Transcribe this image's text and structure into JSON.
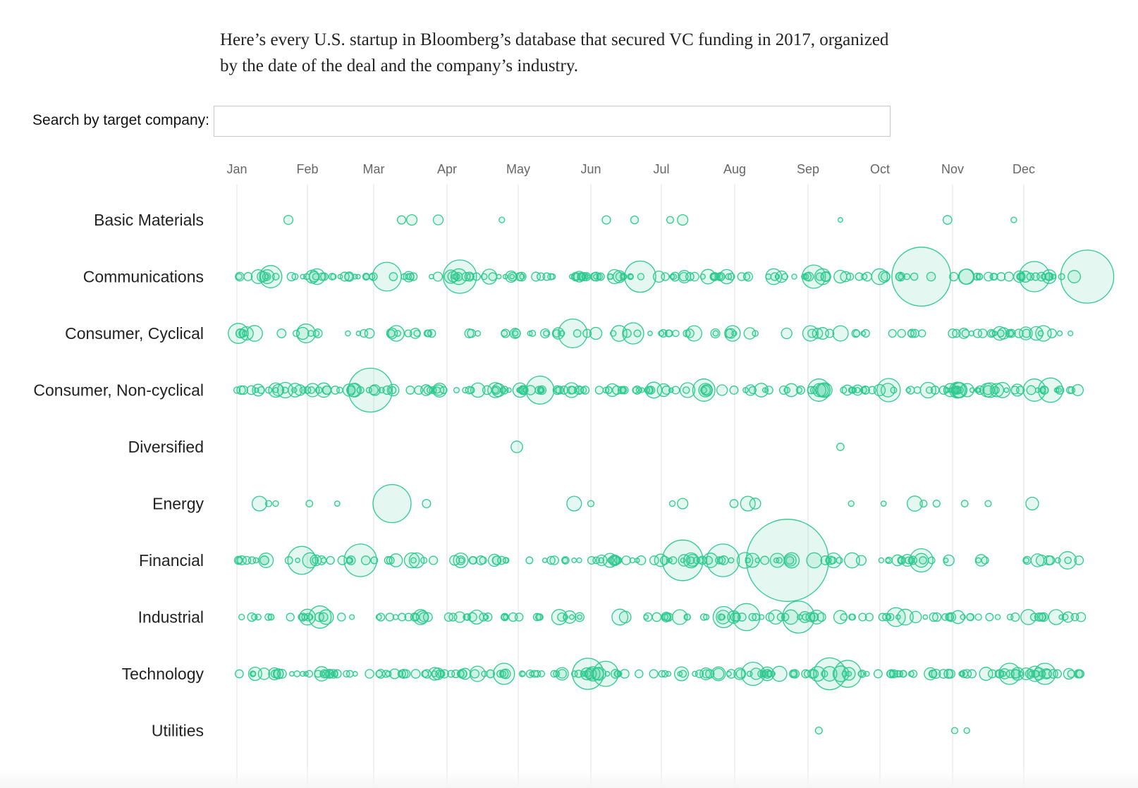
{
  "intro": {
    "text": "Here’s every U.S. startup in Bloomberg’s database that secured VC funding in 2017, organized by the date of the deal and the company’s industry."
  },
  "search": {
    "label": "Search by target company:",
    "placeholder": "",
    "value": ""
  },
  "colors": {
    "bubble_stroke": "#2fca8f",
    "bubble_fill": "rgba(47, 202, 143, 0.13)",
    "gridline": "#ececec",
    "month_label": "#666666",
    "row_label": "#222222"
  },
  "chart_data": {
    "type": "scatter",
    "title": "",
    "xlabel": "",
    "ylabel": "",
    "x_axis": "month",
    "categories": [
      "Jan",
      "Feb",
      "Mar",
      "Apr",
      "May",
      "Jun",
      "Jul",
      "Aug",
      "Sep",
      "Oct",
      "Nov",
      "Dec"
    ],
    "rows": [
      "Basic Materials",
      "Communications",
      "Consumer, Cyclical",
      "Consumer, Non-cyclical",
      "Diversified",
      "Energy",
      "Financial",
      "Industrial",
      "Technology",
      "Utilities"
    ],
    "size_encoding": "bubble area proportional to deal size",
    "grid": true,
    "series": [
      {
        "row": "Basic Materials",
        "points": [
          {
            "month": 1.73,
            "size": 1.5
          },
          {
            "month": 3.38,
            "size": 1.3
          },
          {
            "month": 3.52,
            "size": 2.0
          },
          {
            "month": 3.88,
            "size": 1.8
          },
          {
            "month": 4.77,
            "size": 0.6
          },
          {
            "month": 6.22,
            "size": 1.3
          },
          {
            "month": 6.62,
            "size": 1.1
          },
          {
            "month": 7.12,
            "size": 0.9
          },
          {
            "month": 7.29,
            "size": 2.0
          },
          {
            "month": 9.45,
            "size": 0.4
          },
          {
            "month": 10.93,
            "size": 1.4
          },
          {
            "month": 11.86,
            "size": 0.6
          }
        ]
      },
      {
        "row": "Communications",
        "dense": 0.9,
        "big": [
          {
            "month": 3.18,
            "size": 16
          },
          {
            "month": 4.18,
            "size": 22
          },
          {
            "month": 6.7,
            "size": 19
          },
          {
            "month": 1.48,
            "size": 9
          },
          {
            "month": 9.08,
            "size": 10
          },
          {
            "month": 10.57,
            "size": 75
          },
          {
            "month": 12.15,
            "size": 18
          },
          {
            "month": 12.9,
            "size": 60
          }
        ]
      },
      {
        "row": "Consumer, Cyclical",
        "dense": 0.55,
        "big": [
          {
            "month": 1.02,
            "size": 7
          },
          {
            "month": 1.25,
            "size": 4
          },
          {
            "month": 1.98,
            "size": 6
          },
          {
            "month": 5.75,
            "size": 16
          },
          {
            "month": 6.6,
            "size": 8
          },
          {
            "month": 6.4,
            "size": 4
          }
        ]
      },
      {
        "row": "Consumer, Non-cyclical",
        "dense": 1.0,
        "big": [
          {
            "month": 2.95,
            "size": 40
          },
          {
            "month": 5.3,
            "size": 15
          },
          {
            "month": 7.58,
            "size": 9
          },
          {
            "month": 9.15,
            "size": 9
          },
          {
            "month": 10.12,
            "size": 10
          },
          {
            "month": 12.15,
            "size": 9
          },
          {
            "month": 12.38,
            "size": 11
          }
        ]
      },
      {
        "row": "Diversified",
        "points": [
          {
            "month": 4.98,
            "size": 2.5
          },
          {
            "month": 9.45,
            "size": 1.0
          }
        ]
      },
      {
        "row": "Energy",
        "points": [
          {
            "month": 1.32,
            "size": 4.0
          },
          {
            "month": 1.45,
            "size": 0.7
          },
          {
            "month": 1.55,
            "size": 0.6
          },
          {
            "month": 2.03,
            "size": 0.8
          },
          {
            "month": 2.45,
            "size": 0.5
          },
          {
            "month": 3.25,
            "size": 27
          },
          {
            "month": 3.72,
            "size": 1.3
          },
          {
            "month": 5.77,
            "size": 4.0
          },
          {
            "month": 6.0,
            "size": 0.7
          },
          {
            "month": 7.15,
            "size": 0.6
          },
          {
            "month": 7.29,
            "size": 2.0
          },
          {
            "month": 7.99,
            "size": 1.2
          },
          {
            "month": 8.18,
            "size": 4.0
          },
          {
            "month": 8.28,
            "size": 2.2
          },
          {
            "month": 9.6,
            "size": 0.6
          },
          {
            "month": 10.05,
            "size": 0.5
          },
          {
            "month": 10.48,
            "size": 4.2
          },
          {
            "month": 10.6,
            "size": 0.9
          },
          {
            "month": 10.78,
            "size": 0.9
          },
          {
            "month": 11.17,
            "size": 0.8
          },
          {
            "month": 11.5,
            "size": 0.7
          },
          {
            "month": 12.12,
            "size": 3.0
          }
        ]
      },
      {
        "row": "Financial",
        "dense": 0.7,
        "big": [
          {
            "month": 1.92,
            "size": 15
          },
          {
            "month": 2.8,
            "size": 21
          },
          {
            "month": 7.29,
            "size": 34
          },
          {
            "month": 7.84,
            "size": 21
          },
          {
            "month": 8.72,
            "size": 150
          },
          {
            "month": 10.57,
            "size": 10
          },
          {
            "month": 12.62,
            "size": 5
          }
        ]
      },
      {
        "row": "Industrial",
        "dense": 0.7,
        "big": [
          {
            "month": 2.19,
            "size": 9
          },
          {
            "month": 8.87,
            "size": 20
          },
          {
            "month": 8.16,
            "size": 14
          },
          {
            "month": 7.85,
            "size": 8
          },
          {
            "month": 10.22,
            "size": 6
          },
          {
            "month": 2.0,
            "size": 4
          }
        ]
      },
      {
        "row": "Technology",
        "dense": 1.0,
        "big": [
          {
            "month": 5.96,
            "size": 19
          },
          {
            "month": 6.21,
            "size": 12
          },
          {
            "month": 9.3,
            "size": 20
          },
          {
            "month": 9.55,
            "size": 14
          },
          {
            "month": 8.25,
            "size": 10
          },
          {
            "month": 11.8,
            "size": 8
          },
          {
            "month": 12.3,
            "size": 8
          },
          {
            "month": 4.8,
            "size": 8
          }
        ]
      },
      {
        "row": "Utilities",
        "points": [
          {
            "month": 9.15,
            "size": 0.9
          },
          {
            "month": 11.03,
            "size": 0.7
          },
          {
            "month": 11.2,
            "size": 0.6
          }
        ]
      }
    ]
  }
}
